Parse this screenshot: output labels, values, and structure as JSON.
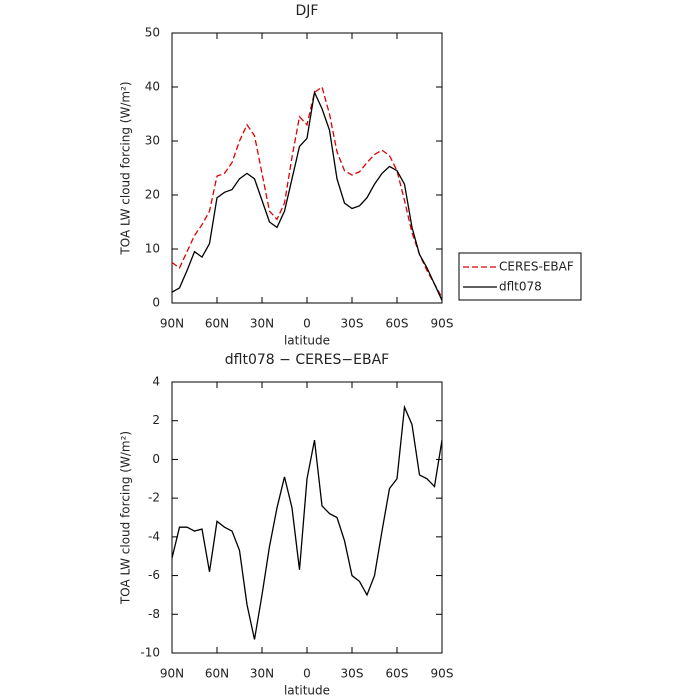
{
  "chart_data": [
    {
      "type": "line",
      "title": "DJF",
      "xlabel": "latitude",
      "ylabel": "TOA LW cloud forcing (W/m²)",
      "x": [
        90,
        85,
        80,
        75,
        70,
        65,
        60,
        55,
        50,
        45,
        40,
        35,
        30,
        25,
        20,
        15,
        10,
        5,
        0,
        -5,
        -10,
        -15,
        -20,
        -25,
        -30,
        -35,
        -40,
        -45,
        -50,
        -55,
        -60,
        -65,
        -70,
        -75,
        -80,
        -85,
        -90
      ],
      "series": [
        {
          "name": "CERES-EBAF",
          "color": "#e00000",
          "linestyle": "dashed",
          "values": [
            7.5,
            6.5,
            9.5,
            12.5,
            14.5,
            17,
            23.5,
            24,
            26,
            30,
            33,
            31,
            24,
            17,
            15.5,
            18.5,
            27,
            34.5,
            33,
            39,
            40,
            35,
            28,
            24.5,
            23.7,
            24.3,
            26,
            27.5,
            28.3,
            27.3,
            24.5,
            19,
            13,
            9,
            6,
            3.5,
            1
          ]
        },
        {
          "name": "dflt078",
          "color": "#000000",
          "linestyle": "solid",
          "values": [
            2,
            2.8,
            6,
            9.5,
            8.5,
            11,
            19.5,
            20.5,
            21,
            23,
            24,
            23,
            19,
            15,
            14,
            17,
            23,
            29,
            30.5,
            39,
            36,
            32,
            23,
            18.5,
            17.5,
            18,
            19.5,
            22,
            24,
            25.3,
            24.5,
            22,
            14,
            9,
            6.5,
            3.5,
            0.5
          ]
        }
      ],
      "xlim": [
        90,
        -90
      ],
      "xticks": [
        {
          "value": 90,
          "label": "90N"
        },
        {
          "value": 60,
          "label": "60N"
        },
        {
          "value": 30,
          "label": "30N"
        },
        0,
        {
          "value": -30,
          "label": "30S"
        },
        {
          "value": -60,
          "label": "60S"
        },
        {
          "value": -90,
          "label": "90S"
        }
      ],
      "ylim": [
        0,
        50
      ],
      "yticks": [
        0,
        10,
        20,
        30,
        40,
        50
      ],
      "legend": "outside-right"
    },
    {
      "type": "line",
      "title": "dflt078 − CERES−EBAF",
      "xlabel": "latitude",
      "ylabel": "TOA LW cloud forcing (W/m²)",
      "x": [
        90,
        85,
        80,
        75,
        70,
        65,
        60,
        55,
        50,
        45,
        40,
        35,
        30,
        25,
        20,
        15,
        10,
        5,
        0,
        -5,
        -10,
        -15,
        -20,
        -25,
        -30,
        -35,
        -40,
        -45,
        -50,
        -55,
        -60,
        -65,
        -70,
        -75,
        -80,
        -85,
        -90
      ],
      "series": [
        {
          "color": "#000000",
          "linestyle": "solid",
          "values": [
            -5.1,
            -3.5,
            -3.5,
            -3.7,
            -3.6,
            -5.8,
            -3.2,
            -3.5,
            -3.7,
            -4.7,
            -7.5,
            -9.3,
            -7,
            -4.5,
            -2.5,
            -0.9,
            -2.5,
            -5.7,
            -1,
            1,
            -2.4,
            -2.8,
            -3,
            -4.2,
            -6,
            -6.3,
            -7,
            -6,
            -3.7,
            -1.5,
            -1,
            2.7,
            1.8,
            -0.8,
            -1,
            -1.4,
            1
          ]
        }
      ],
      "xlim": [
        90,
        -90
      ],
      "xticks": [
        {
          "value": 90,
          "label": "90N"
        },
        {
          "value": 60,
          "label": "60N"
        },
        {
          "value": 30,
          "label": "30N"
        },
        0,
        {
          "value": -30,
          "label": "30S"
        },
        {
          "value": -60,
          "label": "60S"
        },
        {
          "value": -90,
          "label": "90S"
        }
      ],
      "ylim": [
        -10,
        4
      ],
      "yticks": [
        -10,
        -8,
        -6,
        -4,
        -2,
        0,
        2,
        4
      ]
    }
  ]
}
